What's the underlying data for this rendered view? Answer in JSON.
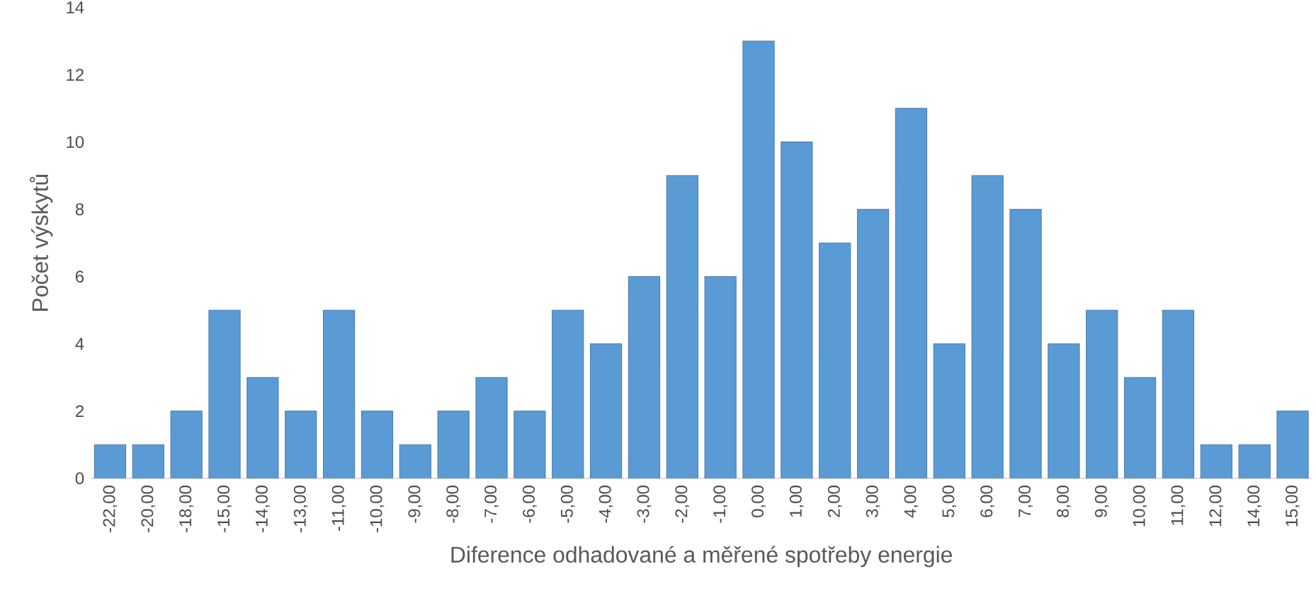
{
  "chart_data": {
    "type": "bar",
    "xlabel": "Diference odhadované a měřené spotřeby energie",
    "ylabel": "Počet výskytů",
    "categories": [
      "-22,00",
      "-20,00",
      "-18,00",
      "-15,00",
      "-14,00",
      "-13,00",
      "-11,00",
      "-10,00",
      "-9,00",
      "-8,00",
      "-7,00",
      "-6,00",
      "-5,00",
      "-4,00",
      "-3,00",
      "-2,00",
      "-1,00",
      "0,00",
      "1,00",
      "2,00",
      "3,00",
      "4,00",
      "5,00",
      "6,00",
      "7,00",
      "8,00",
      "9,00",
      "10,00",
      "11,00",
      "12,00",
      "14,00",
      "15,00"
    ],
    "values": [
      1,
      1,
      2,
      5,
      3,
      2,
      5,
      2,
      1,
      2,
      3,
      2,
      5,
      4,
      6,
      9,
      6,
      13,
      10,
      7,
      8,
      11,
      4,
      9,
      8,
      4,
      5,
      3,
      5,
      1,
      1,
      2
    ],
    "color": "#5b9bd5",
    "ylim": [
      0,
      14
    ],
    "yticks": [
      0,
      2,
      4,
      6,
      8,
      10,
      12,
      14
    ]
  }
}
